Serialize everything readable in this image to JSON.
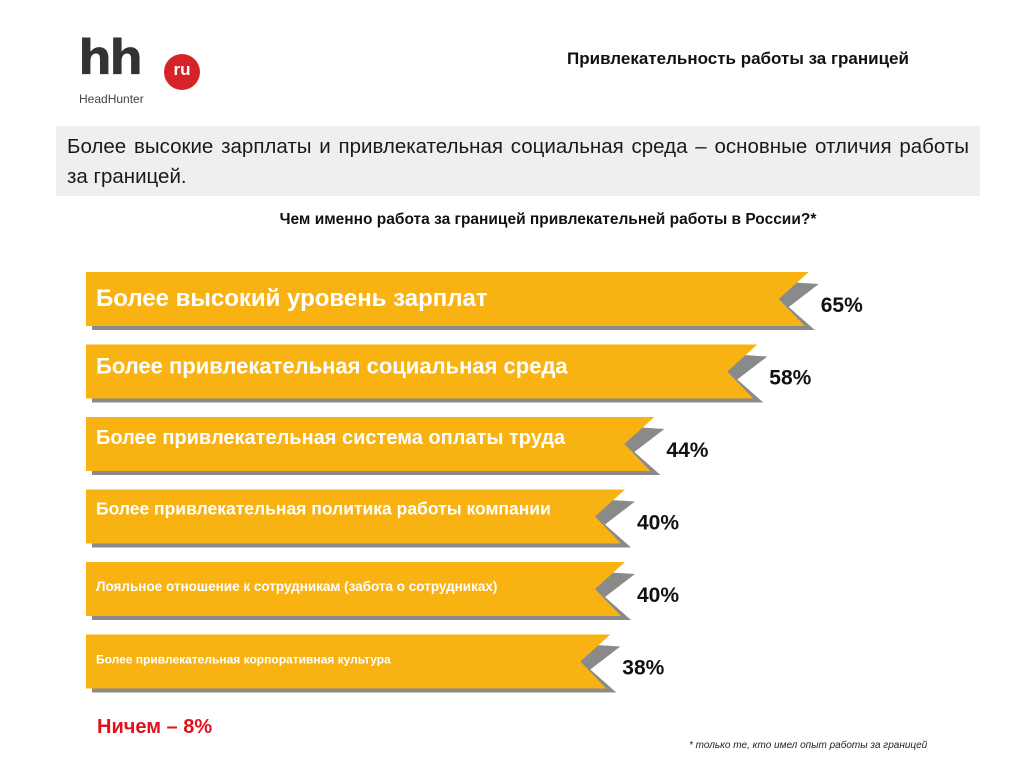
{
  "logo": {
    "mark": "hh",
    "badge": "ru",
    "wordmark": "HeadHunter"
  },
  "header_title": "Привлекательность работы за границей",
  "lead": "Более высокие зарплаты и привлекательная социальная среда – основные отличия работы за границей.",
  "colors": {
    "bar": "#f8b312",
    "shadow": "#8a8a8a",
    "logo_badge": "#d6232a",
    "accent_text": "#e2111d"
  },
  "chart_data": {
    "type": "bar",
    "orientation": "horizontal",
    "title": "Чем именно работа за границей привлекательней работы в России?*",
    "xlabel": "",
    "ylabel": "",
    "grid": false,
    "unit": "%",
    "categories": [
      "Более высокий уровень зарплат",
      "Более привлекательная социальная среда",
      "Более привлекательная система оплаты труда",
      "Более привлекательная политика работы компании",
      "Лояльное отношение к сотрудникам  (забота о сотрудниках)",
      "Более привлекательная корпоративная культура"
    ],
    "values": [
      65,
      58,
      44,
      40,
      40,
      38
    ],
    "value_labels": [
      "65%",
      "58%",
      "44%",
      "40%",
      "40%",
      "38%"
    ]
  },
  "nothing_label": "Ничем – 8%",
  "footnote": "* только те, кто имел опыт работы за границей"
}
